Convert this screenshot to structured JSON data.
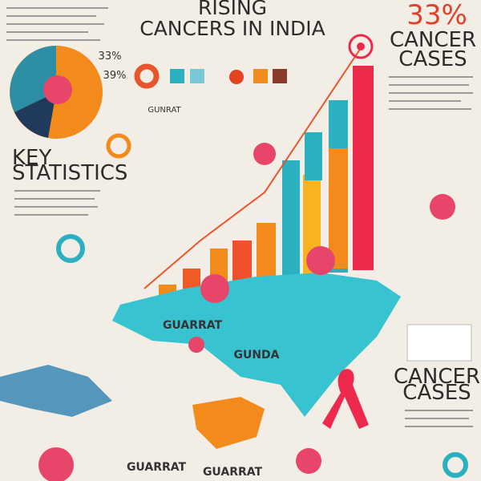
{
  "header": {
    "title_line1": "RISING",
    "title_line2": "CANCERS IN INDIA"
  },
  "top_right": {
    "stat": "33%",
    "label_line1": "CANCER",
    "label_line2": "CASES"
  },
  "pie_labels": [
    "33%",
    "39%"
  ],
  "key_statistics": {
    "line1": "KEY",
    "line2": "STATISTICS"
  },
  "map_labels": [
    "GUARRAT",
    "GUNRAT",
    "GUNDA",
    "GUARRAT",
    "GUARRAT"
  ],
  "right_panel": {
    "line1": "CANCER",
    "line2": "CASES"
  }
}
